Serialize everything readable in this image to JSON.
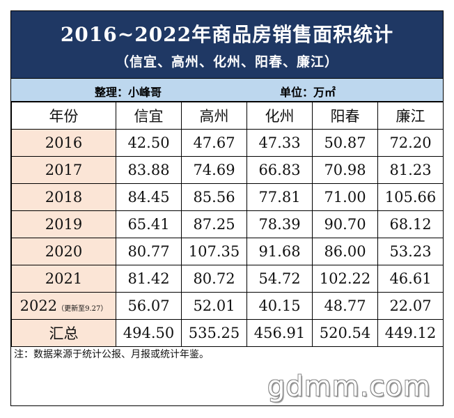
{
  "title": "2016~2022年商品房销售面积统计",
  "subtitle": "（信宜、高州、化州、阳春、廉江）",
  "editor": "整理：小峰哥",
  "unit": "单位：万㎡",
  "colors": {
    "title_bg": "#1f3864",
    "info_bg": "#bdd7ee",
    "year_bg": "#fbe5d6"
  },
  "table": {
    "header": [
      "年份",
      "信宜",
      "高州",
      "化州",
      "阳春",
      "廉江"
    ],
    "rows": [
      {
        "year": "2016",
        "note": "",
        "values": [
          "42.50",
          "47.67",
          "47.33",
          "50.87",
          "72.20"
        ]
      },
      {
        "year": "2017",
        "note": "",
        "values": [
          "83.88",
          "74.69",
          "66.83",
          "70.98",
          "81.23"
        ]
      },
      {
        "year": "2018",
        "note": "",
        "values": [
          "84.45",
          "85.56",
          "77.81",
          "71.00",
          "105.66"
        ]
      },
      {
        "year": "2019",
        "note": "",
        "values": [
          "65.41",
          "87.25",
          "78.39",
          "90.70",
          "68.12"
        ]
      },
      {
        "year": "2020",
        "note": "",
        "values": [
          "80.77",
          "107.35",
          "91.68",
          "86.00",
          "53.23"
        ]
      },
      {
        "year": "2021",
        "note": "",
        "values": [
          "81.42",
          "80.72",
          "54.72",
          "102.22",
          "46.61"
        ]
      },
      {
        "year": "2022",
        "note": "（更新至9.27）",
        "values": [
          "56.07",
          "52.01",
          "40.15",
          "48.77",
          "22.07"
        ]
      }
    ],
    "total": {
      "label": "汇总",
      "values": [
        "494.50",
        "535.25",
        "456.91",
        "520.54",
        "449.12"
      ]
    }
  },
  "footnote": "注：数据来源于统计公报、月报或统计年鉴。",
  "watermark": "gdmm.com"
}
